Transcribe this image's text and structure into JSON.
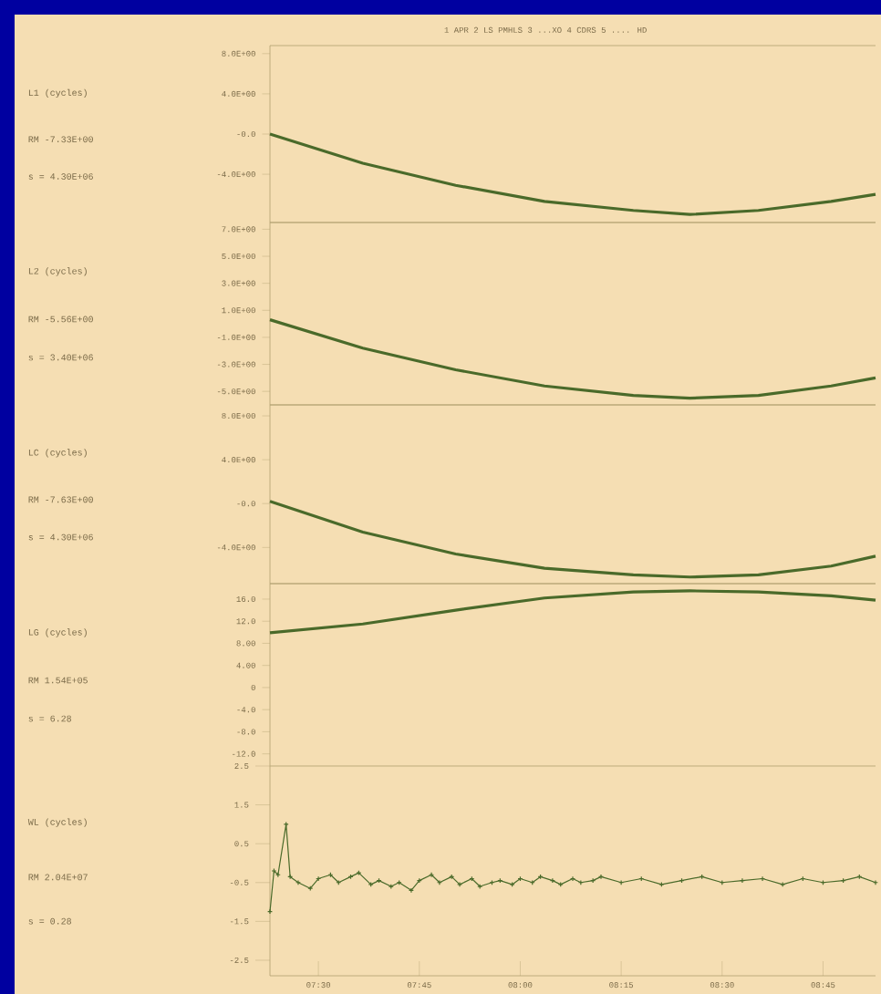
{
  "chart_data": [
    {
      "type": "line",
      "title": "1 APR  2 LS PMHLS  3 ...XO  4 CDRS  5 .... HD",
      "ylabel": "L1 (cycles)",
      "annotations": [
        "RM -7.33E+00",
        "s = 4.30E+06"
      ],
      "x": [
        7.38,
        7.61,
        7.84,
        8.06,
        8.28,
        8.42,
        8.59,
        8.77,
        8.88
      ],
      "series": [
        {
          "color": "#4a6a2a",
          "values": [
            0.0,
            -2.9,
            -5.1,
            -6.7,
            -7.6,
            -8.0,
            -7.6,
            -6.7,
            -6.0
          ]
        }
      ],
      "xlim": [
        7.38,
        8.88
      ],
      "ylim": [
        -8.8,
        8.8
      ],
      "yticks": [
        {
          "value": 8,
          "label": "8.0E+00"
        },
        {
          "value": 4,
          "label": "4.0E+00"
        },
        {
          "value": 0,
          "label": "-0.0"
        },
        {
          "value": -4,
          "label": "-4.0E+00"
        }
      ],
      "tick_labels": "y",
      "marker": "none",
      "line_style": "solid"
    },
    {
      "type": "line",
      "ylabel": "L2 (cycles)",
      "annotations": [
        "RM -5.56E+00",
        "s = 3.40E+06"
      ],
      "x": [
        7.38,
        7.61,
        7.84,
        8.06,
        8.28,
        8.42,
        8.59,
        8.77,
        8.88
      ],
      "series": [
        {
          "color": "#4a6a2a",
          "values": [
            0.3,
            -1.8,
            -3.4,
            -4.6,
            -5.3,
            -5.5,
            -5.3,
            -4.6,
            -4.0
          ]
        }
      ],
      "xlim": [
        7.38,
        8.88
      ],
      "ylim": [
        -6.0,
        7.5
      ],
      "yticks": [
        {
          "value": 7,
          "label": "7.0E+00"
        },
        {
          "value": 5,
          "label": "5.0E+00"
        },
        {
          "value": 3,
          "label": "3.0E+00"
        },
        {
          "value": 1,
          "label": "1.0E+00"
        },
        {
          "value": -1,
          "label": "-1.0E+00"
        },
        {
          "value": -3,
          "label": "-3.0E+00"
        },
        {
          "value": -5,
          "label": "-5.0E+00"
        }
      ],
      "tick_labels": "y",
      "marker": "none",
      "line_style": "solid"
    },
    {
      "type": "line",
      "ylabel": "LC (cycles)",
      "annotations": [
        "RM -7.63E+00",
        "s = 4.30E+06"
      ],
      "x": [
        7.38,
        7.61,
        7.84,
        8.06,
        8.28,
        8.42,
        8.59,
        8.77,
        8.88
      ],
      "series": [
        {
          "color": "#4a6a2a",
          "values": [
            0.2,
            -2.6,
            -4.6,
            -5.9,
            -6.5,
            -6.7,
            -6.5,
            -5.7,
            -4.8
          ]
        }
      ],
      "xlim": [
        7.38,
        8.88
      ],
      "ylim": [
        -7.3,
        9.0
      ],
      "yticks": [
        {
          "value": 8,
          "label": "8.0E+00"
        },
        {
          "value": 4,
          "label": "4.0E+00"
        },
        {
          "value": 0,
          "label": "-0.0"
        },
        {
          "value": -4,
          "label": "-4.0E+00"
        }
      ],
      "tick_labels": "y",
      "marker": "none",
      "line_style": "solid"
    },
    {
      "type": "line",
      "ylabel": "LG (cycles)",
      "annotations": [
        "RM 1.54E+05",
        "s = 6.28"
      ],
      "x": [
        7.38,
        7.61,
        7.84,
        8.06,
        8.28,
        8.42,
        8.59,
        8.77,
        8.88
      ],
      "series": [
        {
          "color": "#4a6a2a",
          "values": [
            9.9,
            11.5,
            14.0,
            16.2,
            17.3,
            17.5,
            17.3,
            16.6,
            15.8
          ]
        }
      ],
      "xlim": [
        7.38,
        8.88
      ],
      "ylim": [
        -14.2,
        18.8
      ],
      "yticks": [
        {
          "value": 16,
          "label": "16.0"
        },
        {
          "value": 12,
          "label": "12.0"
        },
        {
          "value": 8,
          "label": "8.00"
        },
        {
          "value": 4,
          "label": "4.00"
        },
        0,
        {
          "value": -4,
          "label": "-4.0"
        },
        {
          "value": -8,
          "label": "-8.0"
        },
        {
          "value": -12,
          "label": "-12.0"
        }
      ],
      "tick_labels": "y",
      "marker": "none",
      "line_style": "solid"
    },
    {
      "type": "line",
      "ylabel": "WL (cycles)",
      "annotations": [
        "RM 2.04E+07",
        "s = 0.28"
      ],
      "x": [
        7.38,
        7.39,
        7.4,
        7.42,
        7.43,
        7.45,
        7.48,
        7.5,
        7.53,
        7.55,
        7.58,
        7.6,
        7.63,
        7.65,
        7.68,
        7.7,
        7.73,
        7.75,
        7.78,
        7.8,
        7.83,
        7.85,
        7.88,
        7.9,
        7.93,
        7.95,
        7.98,
        8.0,
        8.03,
        8.05,
        8.08,
        8.1,
        8.13,
        8.15,
        8.18,
        8.2,
        8.25,
        8.3,
        8.35,
        8.4,
        8.45,
        8.5,
        8.55,
        8.6,
        8.65,
        8.7,
        8.75,
        8.8,
        8.84,
        8.88
      ],
      "series": [
        {
          "color": "#4a6a2a",
          "values": [
            -1.25,
            -0.2,
            -0.3,
            1.0,
            -0.35,
            -0.5,
            -0.65,
            -0.4,
            -0.3,
            -0.5,
            -0.35,
            -0.25,
            -0.55,
            -0.45,
            -0.6,
            -0.5,
            -0.7,
            -0.45,
            -0.3,
            -0.5,
            -0.35,
            -0.55,
            -0.4,
            -0.6,
            -0.5,
            -0.45,
            -0.55,
            -0.4,
            -0.5,
            -0.35,
            -0.45,
            -0.55,
            -0.4,
            -0.5,
            -0.45,
            -0.35,
            -0.5,
            -0.4,
            -0.55,
            -0.45,
            -0.35,
            -0.5,
            -0.45,
            -0.4,
            -0.55,
            -0.4,
            -0.5,
            -0.45,
            -0.35,
            -0.5
          ]
        }
      ],
      "xlim": [
        7.38,
        8.88
      ],
      "xticks": [
        {
          "value": 7.5,
          "label": "07:30"
        },
        {
          "value": 7.75,
          "label": "07:45"
        },
        {
          "value": 8.0,
          "label": "08:00"
        },
        {
          "value": 8.25,
          "label": "08:15"
        },
        {
          "value": 8.5,
          "label": "08:30"
        },
        {
          "value": 8.75,
          "label": "08:45"
        }
      ],
      "ylim": [
        -2.9,
        2.5
      ],
      "yticks": [
        2.5,
        1.5,
        0.5,
        -0.5,
        -1.5,
        -2.5
      ],
      "marker": "cross",
      "line_style": "solid"
    }
  ]
}
